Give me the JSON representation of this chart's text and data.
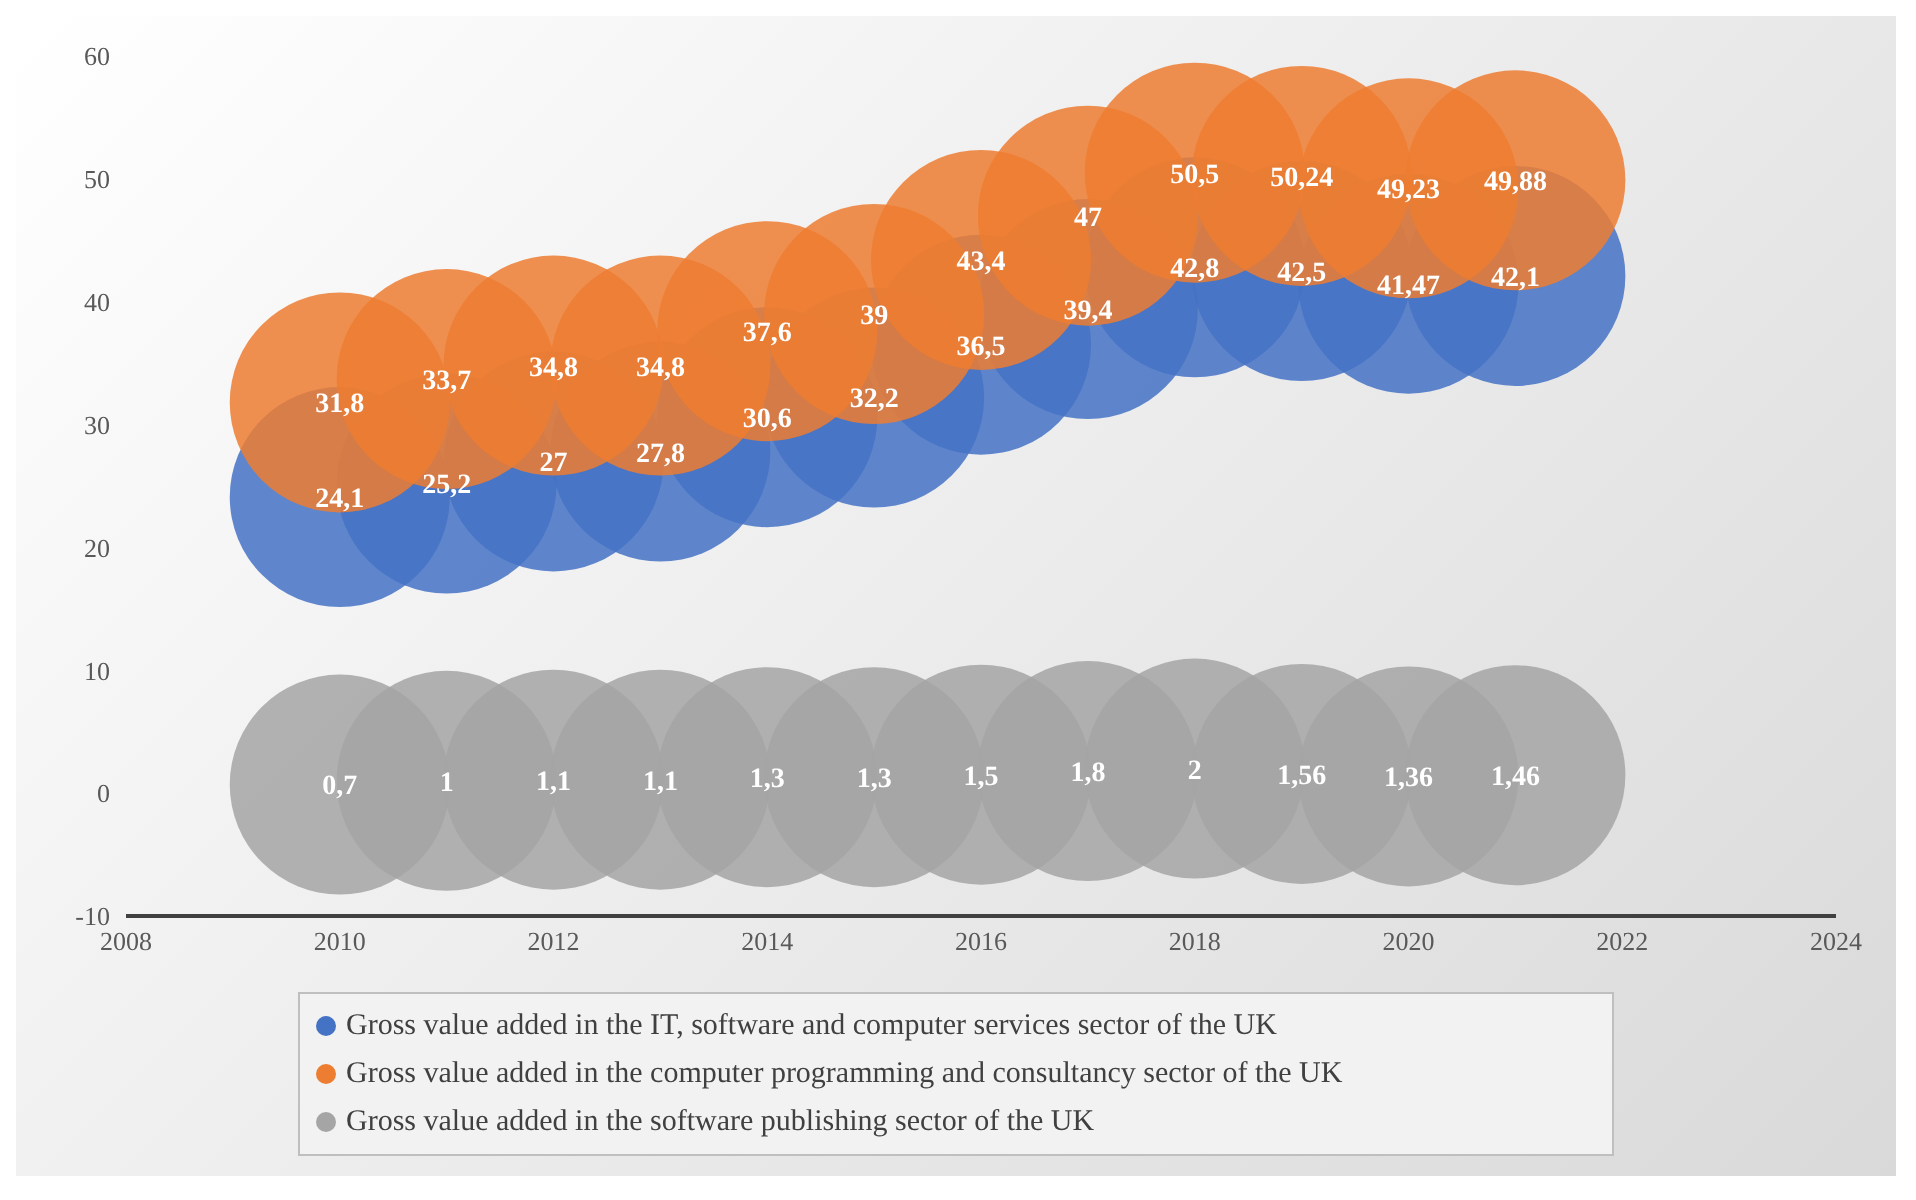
{
  "chart_data": {
    "type": "bubble",
    "x": [
      2010,
      2011,
      2012,
      2013,
      2014,
      2015,
      2016,
      2017,
      2018,
      2019,
      2020,
      2021
    ],
    "series": [
      {
        "name": "Gross value added in the IT, software and computer services sector of the UK",
        "color": "#4472c4",
        "values": [
          24.1,
          25.2,
          27,
          27.8,
          30.6,
          32.2,
          36.5,
          39.4,
          42.8,
          42.5,
          41.47,
          42.1
        ],
        "sizes": [
          1,
          1,
          1,
          1,
          1,
          1,
          1,
          1,
          1,
          1,
          1,
          1
        ],
        "value_labels": [
          "24,1",
          "25,2",
          "27",
          "27,8",
          "30,6",
          "32,2",
          "36,5",
          "39,4",
          "42,8",
          "42,5",
          "41,47",
          "42,1"
        ]
      },
      {
        "name": "Gross value added in the computer programming and consultancy sector of the UK",
        "color": "#ed7d31",
        "values": [
          31.8,
          33.7,
          34.8,
          34.8,
          37.6,
          39,
          43.4,
          47,
          50.5,
          50.24,
          49.23,
          49.88
        ],
        "sizes": [
          1,
          1,
          1,
          1,
          1,
          1,
          1,
          1,
          1,
          1,
          1,
          1
        ],
        "value_labels": [
          "31,8",
          "33,7",
          "34,8",
          "34,8",
          "37,6",
          "39",
          "43,4",
          "47",
          "50,5",
          "50,24",
          "49,23",
          "49,88"
        ]
      },
      {
        "name": "Gross value added in the software publishing sector of the UK",
        "color": "#a5a5a5",
        "values": [
          0.7,
          1,
          1.1,
          1.1,
          1.3,
          1.3,
          1.5,
          1.8,
          2,
          1.56,
          1.36,
          1.46
        ],
        "sizes": [
          1,
          1,
          1,
          1,
          1,
          1,
          1,
          1,
          1,
          1,
          1,
          1
        ],
        "value_labels": [
          "0,7",
          "1",
          "1,1",
          "1,1",
          "1,3",
          "1,3",
          "1,5",
          "1,8",
          "2",
          "1,56",
          "1,36",
          "1,46"
        ]
      }
    ],
    "xlim": [
      2008,
      2024
    ],
    "xticks": [
      2008,
      2010,
      2012,
      2014,
      2016,
      2018,
      2020,
      2022,
      2024
    ],
    "ylim": [
      -10,
      60
    ],
    "yticks": [
      -10,
      0,
      10,
      20,
      30,
      40,
      50,
      60
    ],
    "grid": false,
    "legend": "bottom"
  }
}
